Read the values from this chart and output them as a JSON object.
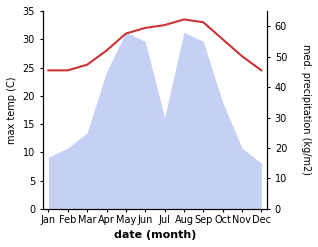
{
  "months": [
    "Jan",
    "Feb",
    "Mar",
    "Apr",
    "May",
    "Jun",
    "Jul",
    "Aug",
    "Sep",
    "Oct",
    "Nov",
    "Dec"
  ],
  "temperature": [
    24.5,
    24.5,
    25.5,
    28,
    31,
    32,
    32.5,
    33.5,
    33,
    30,
    27,
    24.5
  ],
  "precipitation": [
    17,
    20,
    25,
    45,
    58,
    55,
    30,
    58,
    55,
    35,
    20,
    15
  ],
  "temp_color": "#cc3333",
  "precip_fill_color": "#c5d0f5",
  "temp_ylim": [
    0,
    35
  ],
  "precip_ylim": [
    0,
    65
  ],
  "temp_yticks": [
    0,
    5,
    10,
    15,
    20,
    25,
    30,
    35
  ],
  "precip_yticks": [
    0,
    10,
    20,
    30,
    40,
    50,
    60
  ],
  "xlabel": "date (month)",
  "ylabel_left": "max temp (C)",
  "ylabel_right": "med. precipitation (kg/m2)",
  "axis_fontsize": 8,
  "tick_fontsize": 7,
  "label_fontsize": 7
}
